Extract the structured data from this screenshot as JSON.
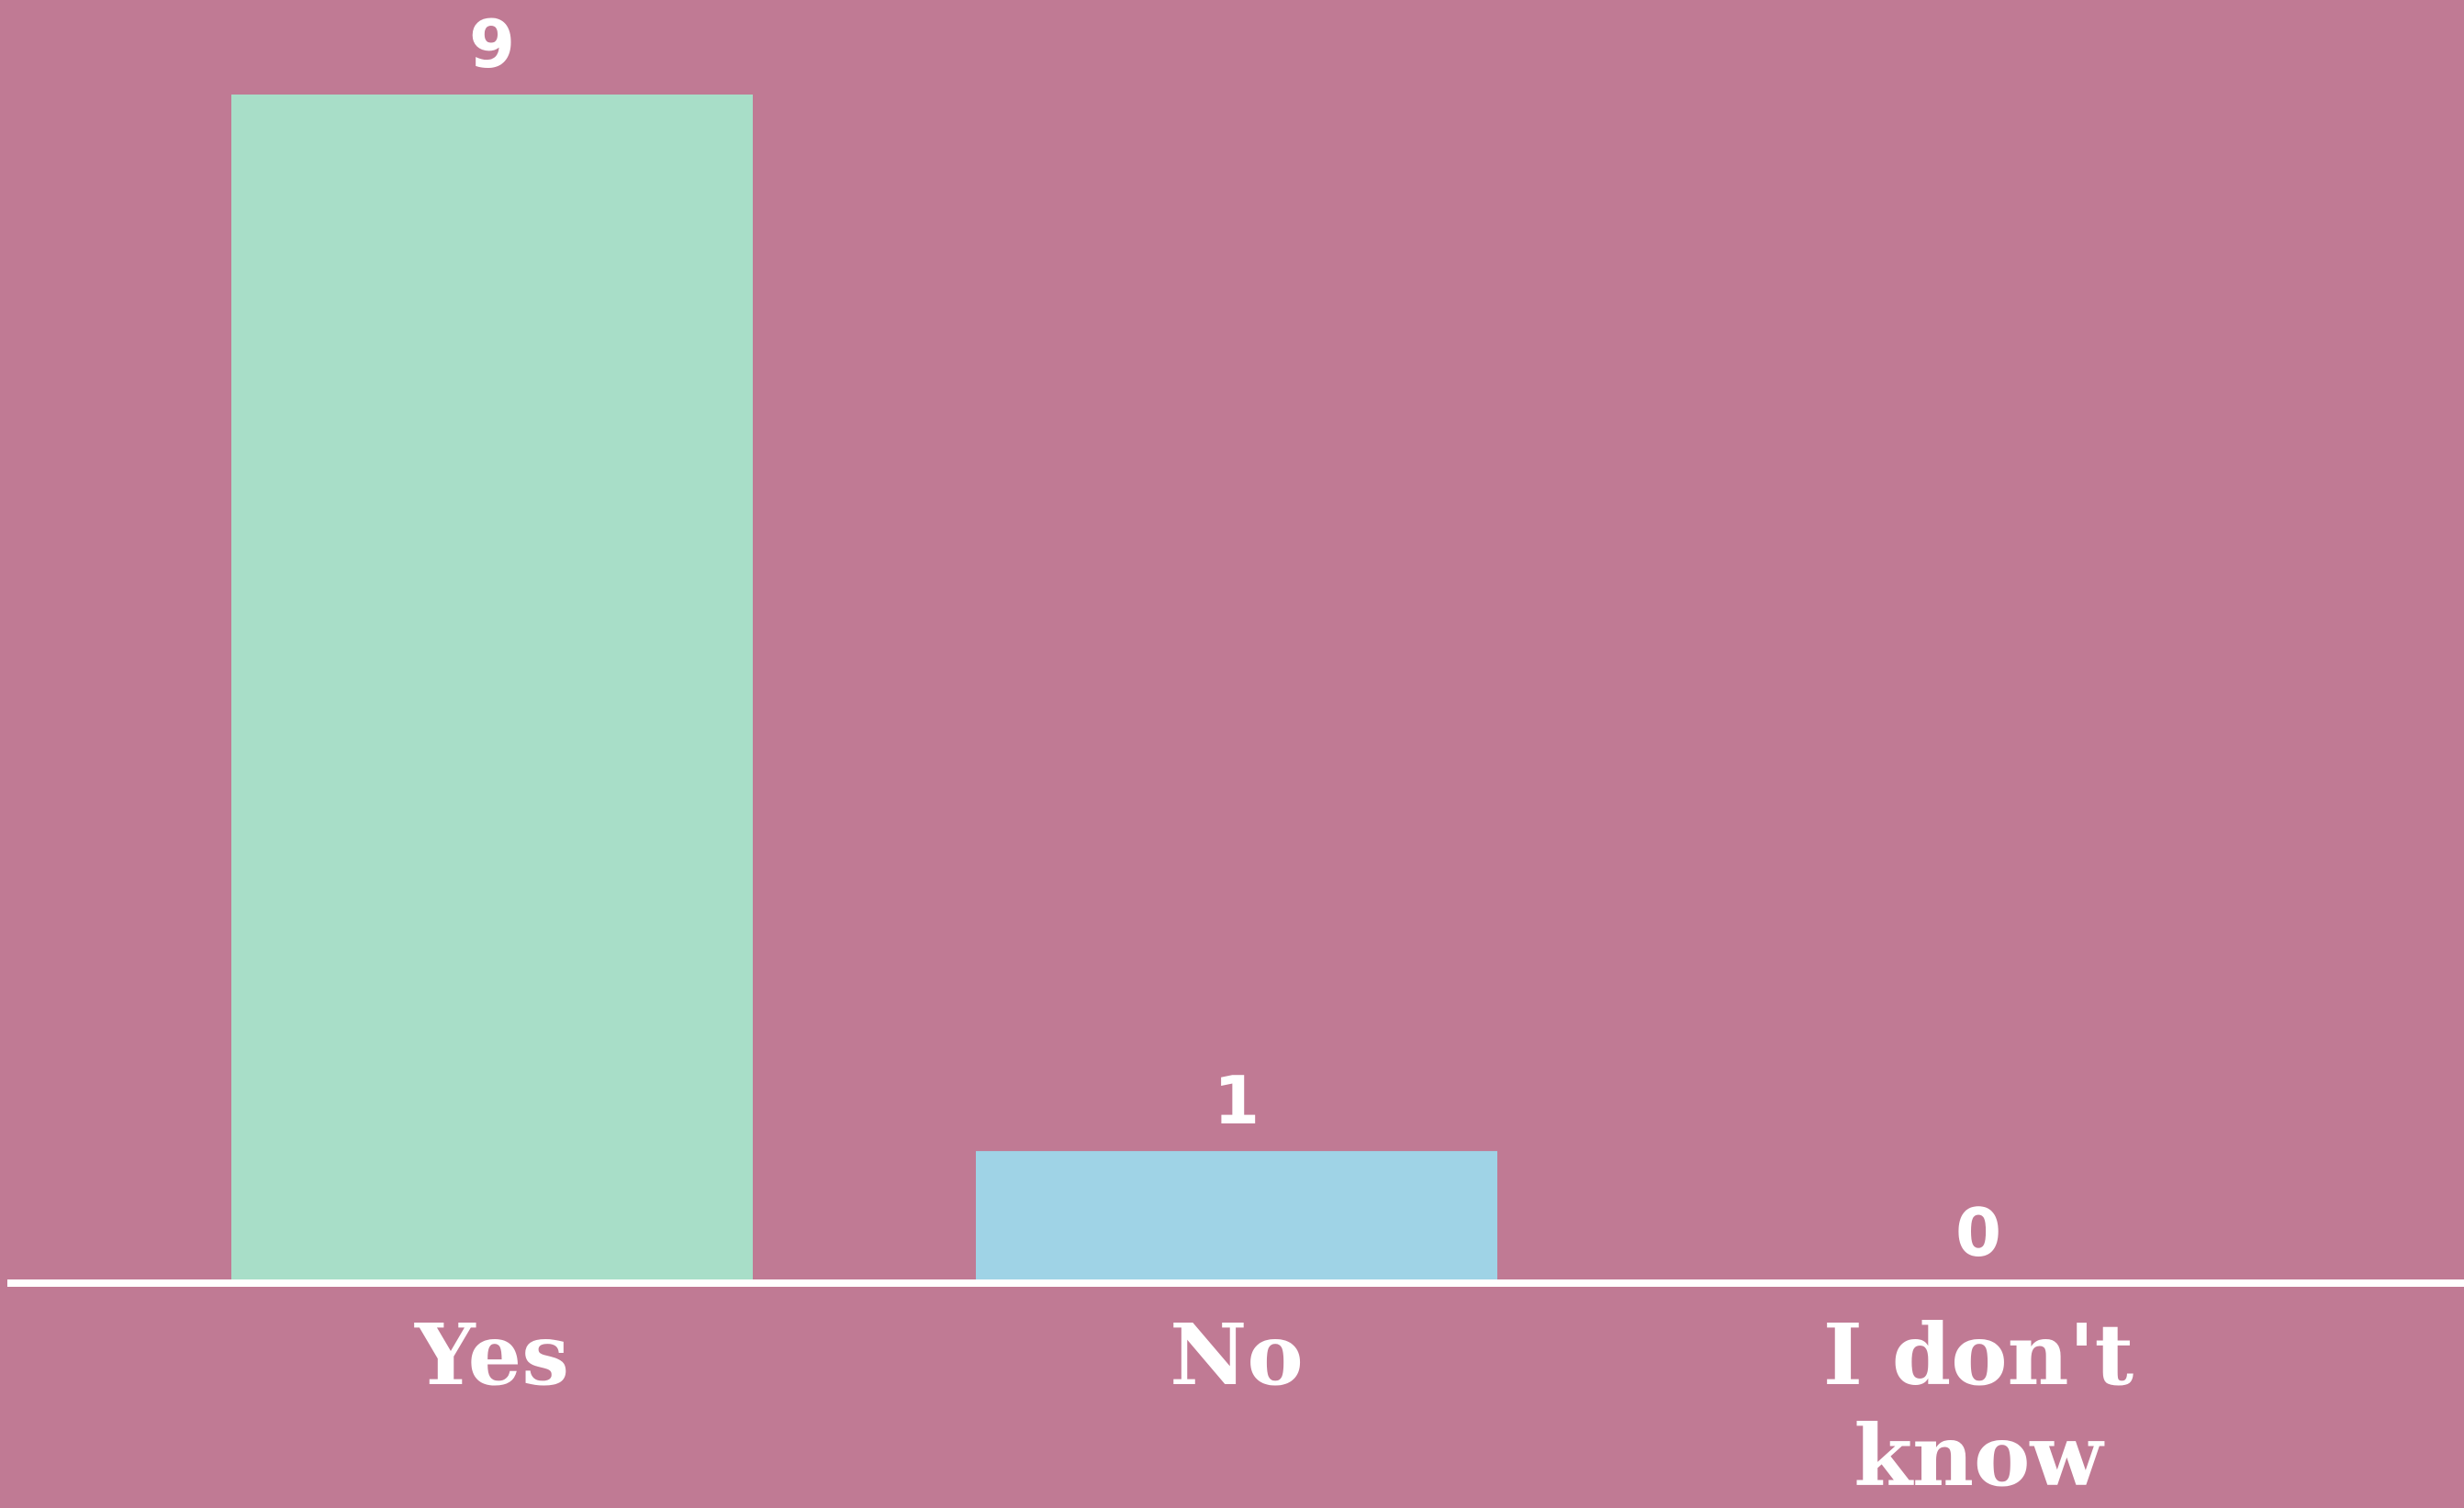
{
  "chart_data": {
    "type": "bar",
    "categories": [
      "Yes",
      "No",
      "I don't know"
    ],
    "category_lines": [
      [
        "Yes"
      ],
      [
        "No"
      ],
      [
        "I don't",
        "know"
      ]
    ],
    "values": [
      9,
      1,
      0
    ],
    "value_labels": [
      "9",
      "1",
      "0"
    ],
    "title": "",
    "xlabel": "",
    "ylabel": "",
    "ylim": [
      0,
      9
    ],
    "grid": false,
    "legend": "none",
    "colors": {
      "background": "#c07a94",
      "bars": [
        "#a8dec8",
        "#9fd3e6",
        "#a8dec8"
      ],
      "axis": "#ffffff",
      "text": "#ffffff"
    }
  }
}
